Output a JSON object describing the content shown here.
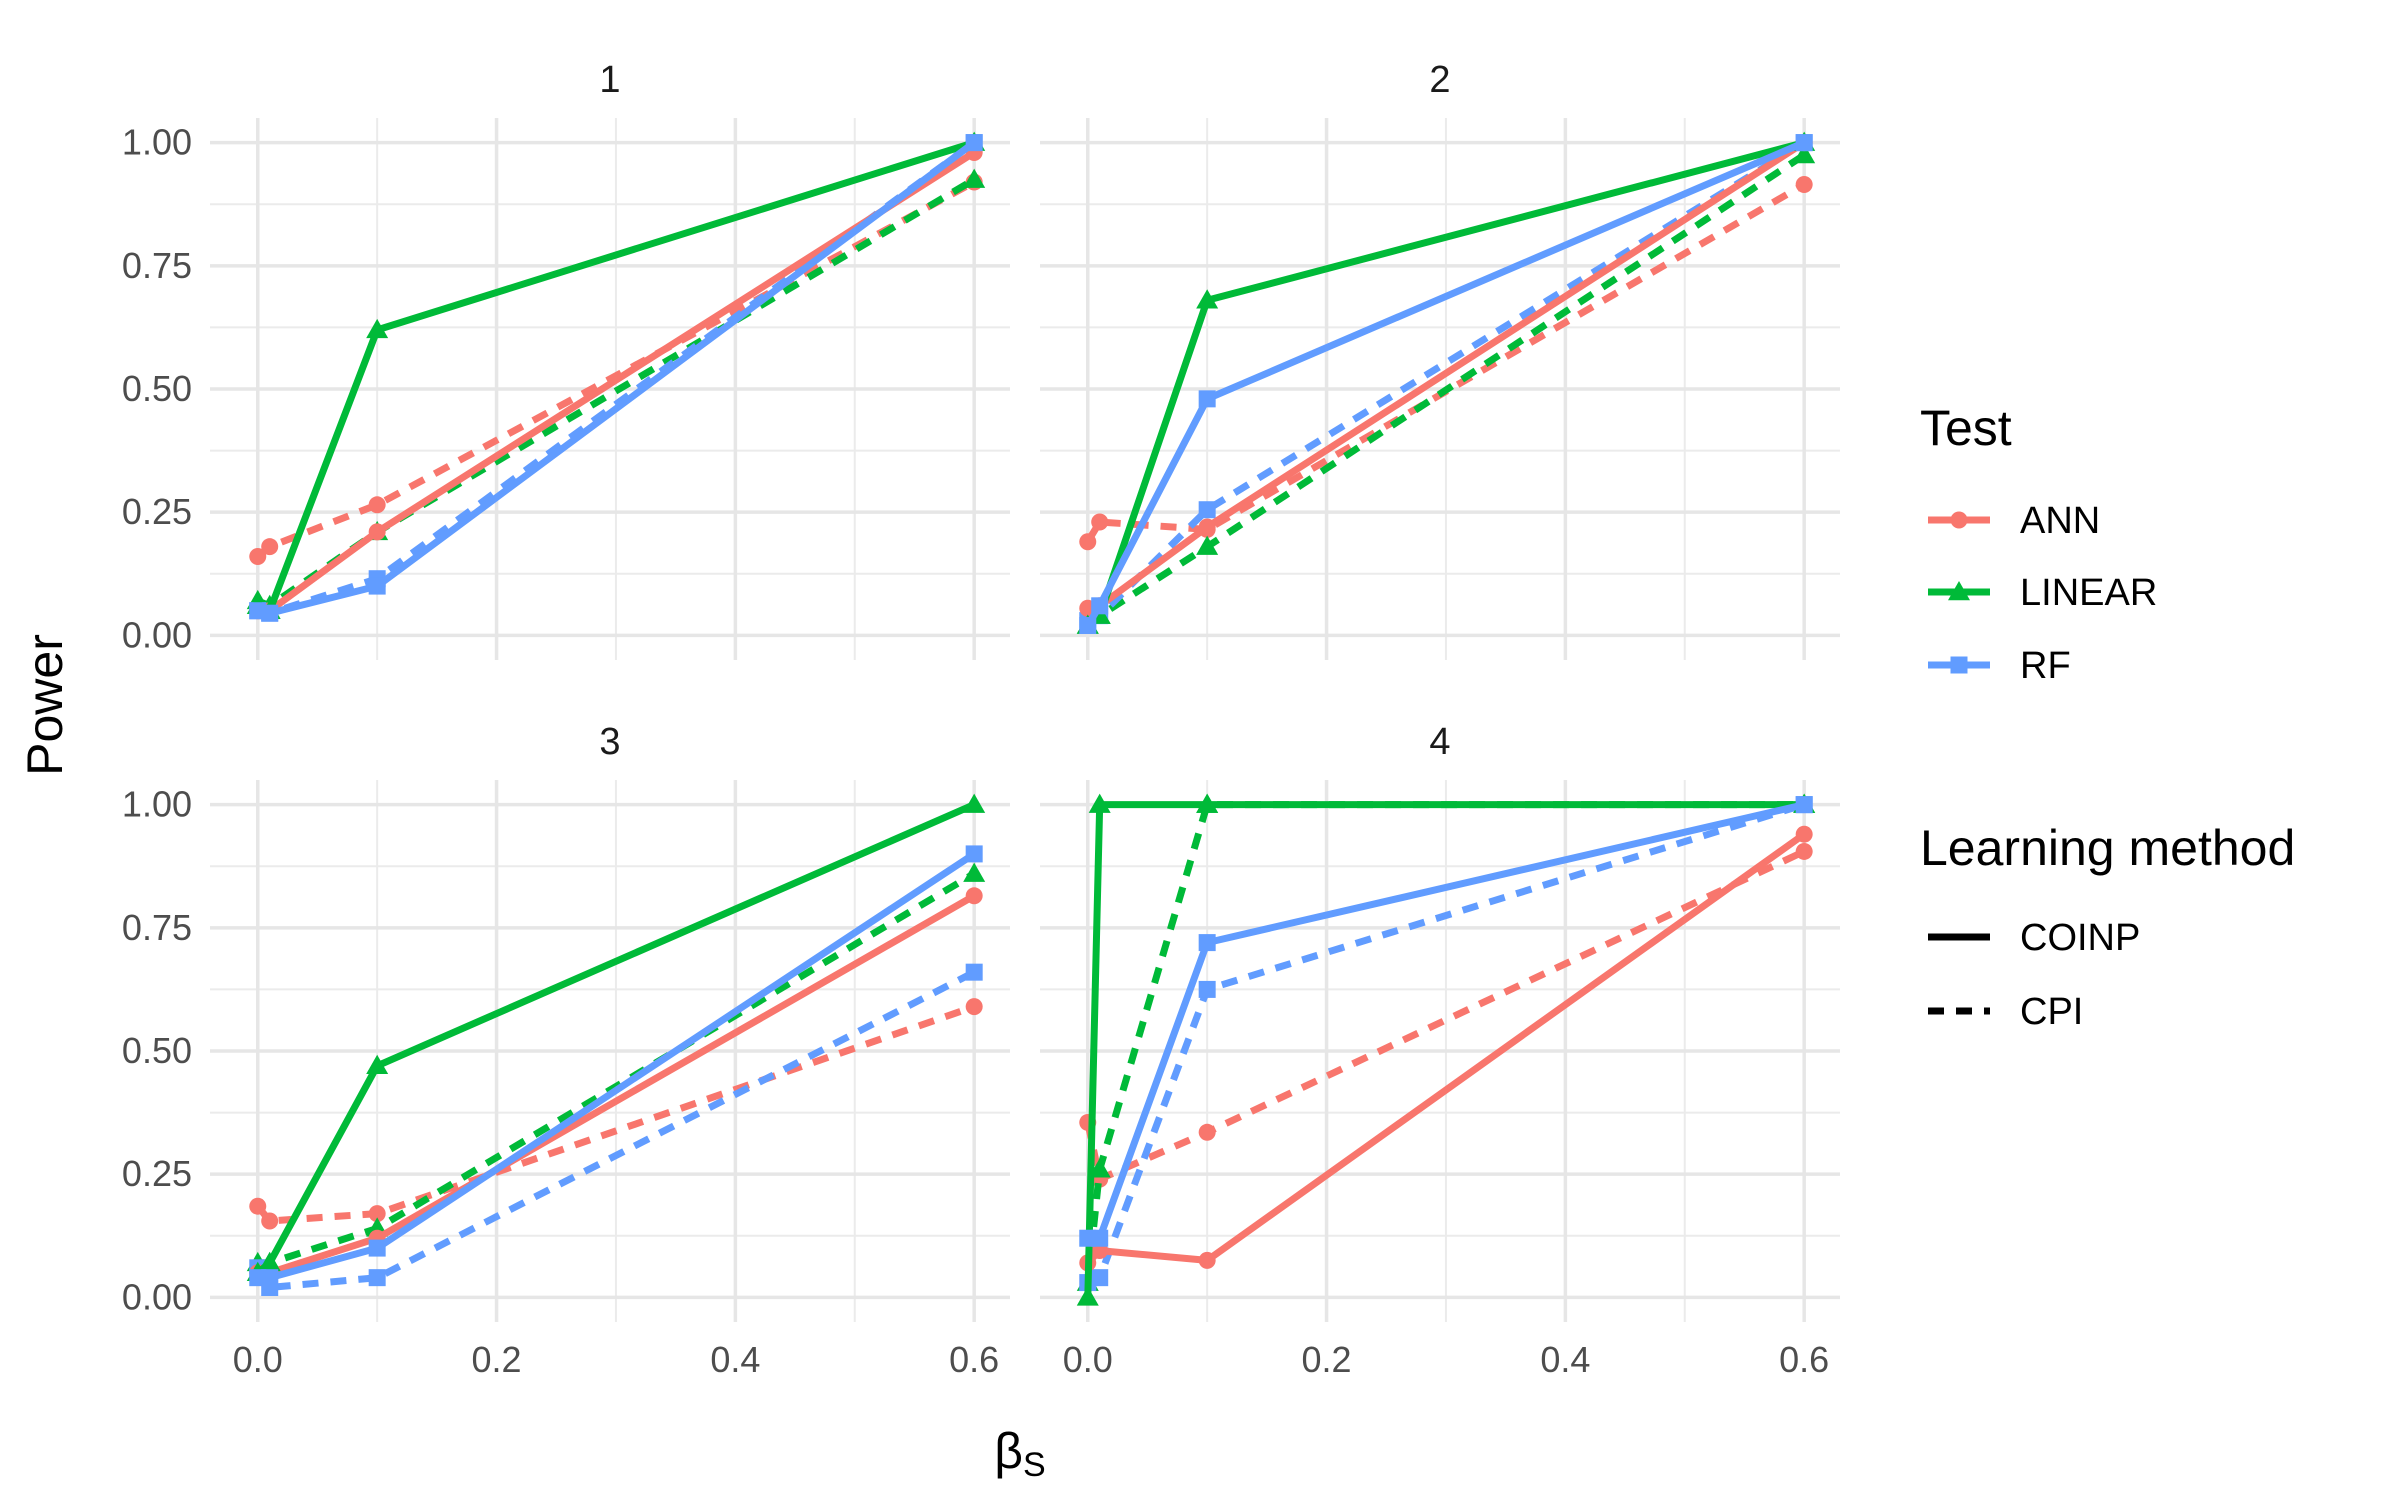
{
  "chart_data": {
    "type": "line",
    "ylabel": "Power",
    "xlabel": "β",
    "xlabel_sub": "S",
    "xlim": [
      -0.04,
      0.63
    ],
    "ylim": [
      -0.05,
      1.05
    ],
    "x_ticks": [
      0.0,
      0.2,
      0.4,
      0.6
    ],
    "x_tick_labels": [
      "0.0",
      "0.2",
      "0.4",
      "0.6"
    ],
    "y_ticks": [
      0,
      0.25,
      0.5,
      0.75,
      1
    ],
    "y_tick_labels": [
      "0.00",
      "0.25",
      "0.50",
      "0.75",
      "1.00"
    ],
    "colors": {
      "ANN": "#F8766D",
      "LINEAR": "#00BA38",
      "RF": "#619CFF"
    },
    "legend": {
      "test_title": "Test",
      "test_items": [
        "ANN",
        "LINEAR",
        "RF"
      ],
      "method_title": "Learning method",
      "method_items": [
        "COINP",
        "CPI"
      ]
    },
    "panels": [
      {
        "label": "1",
        "series": [
          {
            "test": "ANN",
            "method": "COINP",
            "x": [
              0,
              0.01,
              0.1,
              0.6
            ],
            "y": [
              0.05,
              0.05,
              0.21,
              0.98
            ]
          },
          {
            "test": "ANN",
            "method": "CPI",
            "x": [
              0,
              0.01,
              0.1,
              0.6
            ],
            "y": [
              0.16,
              0.18,
              0.265,
              0.92
            ]
          },
          {
            "test": "LINEAR",
            "method": "COINP",
            "x": [
              0,
              0.01,
              0.1,
              0.6
            ],
            "y": [
              0.06,
              0.05,
              0.62,
              1.0
            ]
          },
          {
            "test": "LINEAR",
            "method": "CPI",
            "x": [
              0,
              0.01,
              0.1,
              0.6
            ],
            "y": [
              0.07,
              0.06,
              0.21,
              0.925
            ]
          },
          {
            "test": "RF",
            "method": "COINP",
            "x": [
              0,
              0.01,
              0.1,
              0.6
            ],
            "y": [
              0.05,
              0.045,
              0.1,
              1.0
            ]
          },
          {
            "test": "RF",
            "method": "CPI",
            "x": [
              0,
              0.01,
              0.1,
              0.6
            ],
            "y": [
              0.05,
              0.045,
              0.115,
              1.0
            ]
          }
        ]
      },
      {
        "label": "2",
        "series": [
          {
            "test": "ANN",
            "method": "COINP",
            "x": [
              0,
              0.01,
              0.1,
              0.6
            ],
            "y": [
              0.055,
              0.06,
              0.22,
              1.0
            ]
          },
          {
            "test": "ANN",
            "method": "CPI",
            "x": [
              0,
              0.01,
              0.1,
              0.6
            ],
            "y": [
              0.19,
              0.23,
              0.215,
              0.915
            ]
          },
          {
            "test": "LINEAR",
            "method": "COINP",
            "x": [
              0,
              0.01,
              0.1,
              0.6
            ],
            "y": [
              0.02,
              0.04,
              0.68,
              1.0
            ]
          },
          {
            "test": "LINEAR",
            "method": "CPI",
            "x": [
              0,
              0.01,
              0.1,
              0.6
            ],
            "y": [
              0.02,
              0.04,
              0.18,
              0.975
            ]
          },
          {
            "test": "RF",
            "method": "COINP",
            "x": [
              0,
              0.01,
              0.1,
              0.6
            ],
            "y": [
              0.02,
              0.06,
              0.48,
              1.0
            ]
          },
          {
            "test": "RF",
            "method": "CPI",
            "x": [
              0,
              0.01,
              0.1,
              0.6
            ],
            "y": [
              0.03,
              0.04,
              0.255,
              1.0
            ]
          }
        ]
      },
      {
        "label": "3",
        "series": [
          {
            "test": "ANN",
            "method": "COINP",
            "x": [
              0,
              0.01,
              0.1,
              0.6
            ],
            "y": [
              0.05,
              0.05,
              0.12,
              0.815
            ]
          },
          {
            "test": "ANN",
            "method": "CPI",
            "x": [
              0,
              0.01,
              0.1,
              0.6
            ],
            "y": [
              0.185,
              0.155,
              0.17,
              0.59
            ]
          },
          {
            "test": "LINEAR",
            "method": "COINP",
            "x": [
              0,
              0.01,
              0.1,
              0.6
            ],
            "y": [
              0.05,
              0.07,
              0.47,
              1.0
            ]
          },
          {
            "test": "LINEAR",
            "method": "CPI",
            "x": [
              0,
              0.01,
              0.1,
              0.6
            ],
            "y": [
              0.07,
              0.07,
              0.14,
              0.86
            ]
          },
          {
            "test": "RF",
            "method": "COINP",
            "x": [
              0,
              0.01,
              0.1,
              0.6
            ],
            "y": [
              0.04,
              0.04,
              0.1,
              0.9
            ]
          },
          {
            "test": "RF",
            "method": "CPI",
            "x": [
              0,
              0.01,
              0.1,
              0.6
            ],
            "y": [
              0.06,
              0.02,
              0.04,
              0.66
            ]
          }
        ]
      },
      {
        "label": "4",
        "series": [
          {
            "test": "ANN",
            "method": "COINP",
            "x": [
              0,
              0.01,
              0.1,
              0.6
            ],
            "y": [
              0.07,
              0.095,
              0.075,
              0.94
            ]
          },
          {
            "test": "ANN",
            "method": "CPI",
            "x": [
              0,
              0.01,
              0.1,
              0.6
            ],
            "y": [
              0.355,
              0.24,
              0.335,
              0.905
            ]
          },
          {
            "test": "LINEAR",
            "method": "COINP",
            "x": [
              0,
              0.01,
              0.1,
              0.6
            ],
            "y": [
              0.0,
              1.0,
              1.0,
              1.0
            ]
          },
          {
            "test": "LINEAR",
            "method": "CPI",
            "x": [
              0,
              0.01,
              0.1,
              0.6
            ],
            "y": [
              0.03,
              0.26,
              1.0,
              1.0
            ]
          },
          {
            "test": "RF",
            "method": "COINP",
            "x": [
              0,
              0.01,
              0.1,
              0.6
            ],
            "y": [
              0.12,
              0.12,
              0.72,
              1.0
            ]
          },
          {
            "test": "RF",
            "method": "CPI",
            "x": [
              0,
              0.01,
              0.1,
              0.6
            ],
            "y": [
              0.03,
              0.04,
              0.625,
              1.0
            ]
          }
        ]
      }
    ]
  }
}
